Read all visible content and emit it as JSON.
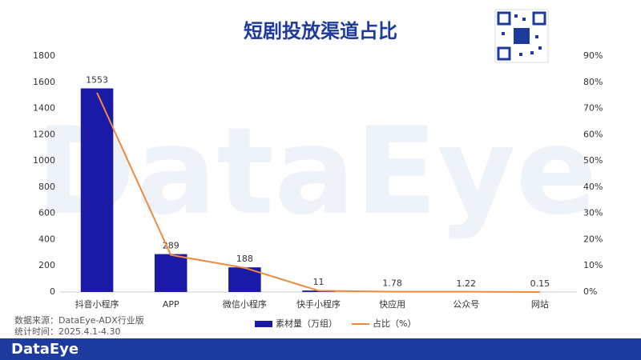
{
  "watermark": "DataEye",
  "chart_data": {
    "type": "bar",
    "title": "短剧投放渠道占比",
    "categories": [
      "抖音小程序",
      "APP",
      "微信小程序",
      "快手小程序",
      "快应用",
      "公众号",
      "网站"
    ],
    "series": [
      {
        "name": "素材量（万组）",
        "color": "#1a1aa6",
        "values": [
          1553,
          289,
          188,
          11,
          1.78,
          1.22,
          0.15
        ]
      },
      {
        "name": "占比（%）",
        "color": "#f08a3c",
        "type": "line",
        "axis": "y2",
        "values": [
          76,
          14.1,
          9.2,
          0.5,
          0.1,
          0.1,
          0
        ]
      }
    ],
    "ylim": [
      0,
      1800
    ],
    "yticks": [
      0,
      200,
      400,
      600,
      800,
      1000,
      1200,
      1400,
      1600,
      1800
    ],
    "y2lim": [
      0,
      90
    ],
    "y2ticks": [
      {
        "value": 0,
        "label": "0%"
      },
      {
        "value": 10,
        "label": "10%"
      },
      {
        "value": 20,
        "label": "20%"
      },
      {
        "value": 30,
        "label": "30%"
      },
      {
        "value": 40,
        "label": "40%"
      },
      {
        "value": 50,
        "label": "50%"
      },
      {
        "value": 60,
        "label": "60%"
      },
      {
        "value": 70,
        "label": "70%"
      },
      {
        "value": 80,
        "label": "80%"
      },
      {
        "value": 90,
        "label": "90%"
      }
    ],
    "legend": "bottom"
  },
  "source": [
    "数据来源：DataEye-ADX行业版",
    "统计时间：2025.4.1-4.30"
  ],
  "footer_logo": "DataEye"
}
